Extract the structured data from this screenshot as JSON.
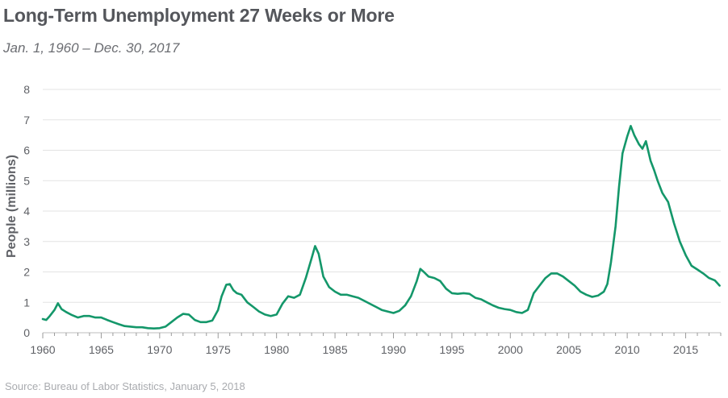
{
  "header": {
    "title": "Long-Term Unemployment 27 Weeks or More",
    "subtitle": "Jan. 1, 1960 – Dec. 30, 2017"
  },
  "footer": {
    "source": "Source: Bureau of Labor Statistics,  January 5, 2018"
  },
  "colors": {
    "line": "#14976a",
    "title": "#54565b",
    "source": "#a9abaf"
  },
  "chart_data": {
    "type": "line",
    "title": "Long-Term Unemployment 27 Weeks or More",
    "subtitle": "Jan. 1, 1960 – Dec. 30, 2017",
    "xlabel": "",
    "ylabel": "People (millions)",
    "xlim": [
      1960,
      2018
    ],
    "ylim": [
      0,
      8
    ],
    "x_ticks": [
      "1960",
      "1965",
      "1970",
      "1975",
      "1980",
      "1985",
      "1990",
      "1995",
      "2000",
      "2005",
      "2010",
      "2015"
    ],
    "y_ticks": [
      "0",
      "1",
      "2",
      "3",
      "4",
      "5",
      "6",
      "7",
      "8"
    ],
    "grid": "horizontal",
    "legend": "none",
    "series": [
      {
        "x": [
          1960.0,
          1960.3,
          1960.6,
          1961.0,
          1961.3,
          1961.6,
          1962.0,
          1962.5,
          1963.0,
          1963.5,
          1964.0,
          1964.5,
          1965.0,
          1965.5,
          1966.0,
          1966.5,
          1967.0,
          1967.5,
          1968.0,
          1968.5,
          1969.0,
          1969.5,
          1970.0,
          1970.5,
          1971.0,
          1971.5,
          1972.0,
          1972.5,
          1973.0,
          1973.5,
          1974.0,
          1974.5,
          1975.0,
          1975.3,
          1975.7,
          1976.0,
          1976.3,
          1976.6,
          1977.0,
          1977.5,
          1978.0,
          1978.5,
          1979.0,
          1979.5,
          1980.0,
          1980.5,
          1981.0,
          1981.5,
          1982.0,
          1982.5,
          1983.0,
          1983.3,
          1983.6,
          1984.0,
          1984.5,
          1985.0,
          1985.5,
          1986.0,
          1986.5,
          1987.0,
          1987.5,
          1988.0,
          1988.5,
          1989.0,
          1989.5,
          1990.0,
          1990.5,
          1991.0,
          1991.5,
          1992.0,
          1992.3,
          1992.6,
          1993.0,
          1993.5,
          1994.0,
          1994.5,
          1995.0,
          1995.5,
          1996.0,
          1996.5,
          1997.0,
          1997.5,
          1998.0,
          1998.5,
          1999.0,
          1999.5,
          2000.0,
          2000.5,
          2001.0,
          2001.5,
          2002.0,
          2002.5,
          2003.0,
          2003.5,
          2004.0,
          2004.5,
          2005.0,
          2005.5,
          2006.0,
          2006.5,
          2007.0,
          2007.5,
          2008.0,
          2008.3,
          2008.6,
          2009.0,
          2009.3,
          2009.6,
          2010.0,
          2010.3,
          2010.6,
          2011.0,
          2011.3,
          2011.6,
          2012.0,
          2012.3,
          2012.6,
          2013.0,
          2013.5,
          2014.0,
          2014.5,
          2015.0,
          2015.5,
          2016.0,
          2016.5,
          2017.0,
          2017.5,
          2017.9
        ],
        "values": [
          0.45,
          0.42,
          0.55,
          0.75,
          0.97,
          0.78,
          0.68,
          0.58,
          0.5,
          0.55,
          0.55,
          0.5,
          0.5,
          0.42,
          0.35,
          0.28,
          0.22,
          0.2,
          0.18,
          0.18,
          0.15,
          0.14,
          0.15,
          0.2,
          0.35,
          0.5,
          0.62,
          0.6,
          0.42,
          0.35,
          0.35,
          0.4,
          0.75,
          1.2,
          1.58,
          1.6,
          1.4,
          1.3,
          1.25,
          1.0,
          0.85,
          0.7,
          0.6,
          0.55,
          0.6,
          0.95,
          1.2,
          1.15,
          1.25,
          1.8,
          2.45,
          2.85,
          2.6,
          1.85,
          1.5,
          1.35,
          1.25,
          1.25,
          1.2,
          1.15,
          1.05,
          0.95,
          0.85,
          0.75,
          0.7,
          0.65,
          0.72,
          0.9,
          1.2,
          1.7,
          2.1,
          2.0,
          1.85,
          1.8,
          1.7,
          1.45,
          1.3,
          1.28,
          1.3,
          1.28,
          1.15,
          1.1,
          1.0,
          0.9,
          0.82,
          0.78,
          0.75,
          0.68,
          0.65,
          0.75,
          1.3,
          1.55,
          1.8,
          1.95,
          1.95,
          1.85,
          1.7,
          1.55,
          1.35,
          1.25,
          1.18,
          1.22,
          1.35,
          1.6,
          2.3,
          3.5,
          4.8,
          5.9,
          6.45,
          6.8,
          6.5,
          6.2,
          6.05,
          6.3,
          5.65,
          5.35,
          5.0,
          4.6,
          4.3,
          3.6,
          3.0,
          2.55,
          2.2,
          2.08,
          1.95,
          1.8,
          1.72,
          1.55
        ]
      }
    ]
  }
}
